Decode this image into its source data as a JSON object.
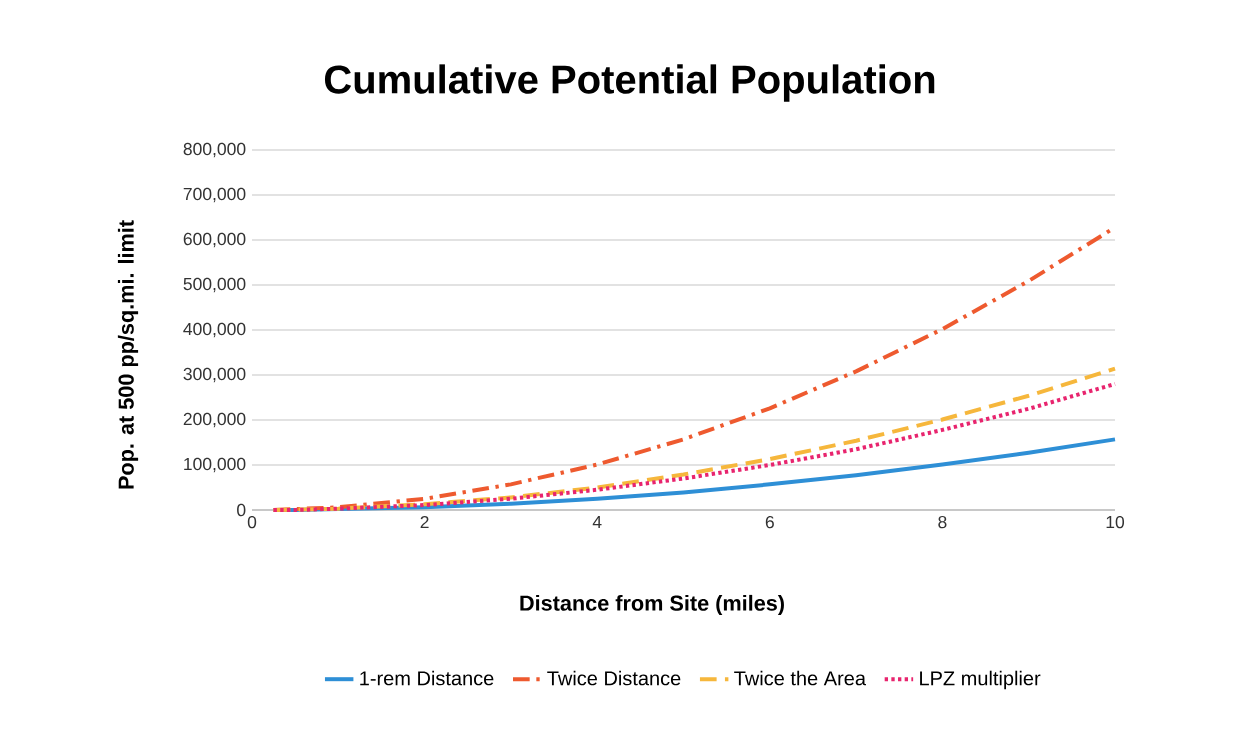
{
  "chart_data": {
    "type": "line",
    "title": "Cumulative Potential Population",
    "xlabel": "Distance from Site (miles)",
    "ylabel": "Pop. at 500 pp/sq.mi. limit",
    "x": [
      0.25,
      0.5,
      1,
      2,
      3,
      4,
      5,
      6,
      7,
      8,
      9,
      10
    ],
    "series": [
      {
        "name": "1-rem  Distance",
        "color": "#2e8fd6",
        "line_style": "solid",
        "values": [
          0,
          0,
          2000,
          6000,
          14000,
          25000,
          39000,
          57000,
          77000,
          101000,
          127000,
          157000
        ]
      },
      {
        "name": "Twice Distance",
        "color": "#ee5a2f",
        "line_style": "dashdot",
        "values": [
          0,
          2000,
          6000,
          25000,
          57000,
          101000,
          157000,
          226000,
          308000,
          402000,
          509000,
          628000
        ]
      },
      {
        "name": "Twice the Area",
        "color": "#f6b73c",
        "line_style": "dashed",
        "values": [
          0,
          1000,
          3000,
          13000,
          28000,
          50000,
          79000,
          113000,
          154000,
          201000,
          254000,
          314000
        ]
      },
      {
        "name": "LPZ multiplier",
        "color": "#e8246e",
        "line_style": "dotted",
        "values": [
          0,
          0,
          3000,
          11000,
          25000,
          45000,
          70000,
          100000,
          135000,
          178000,
          225000,
          280000
        ]
      }
    ],
    "xlim": [
      0,
      10
    ],
    "xticks": [
      0,
      2,
      4,
      6,
      8,
      10
    ],
    "ylim": [
      0,
      800000
    ],
    "yticks": [
      0,
      {
        "value": 100000,
        "label": "100,000"
      },
      {
        "value": 200000,
        "label": "200,000"
      },
      {
        "value": 300000,
        "label": "300,000"
      },
      {
        "value": 400000,
        "label": "400,000"
      },
      {
        "value": 500000,
        "label": "500,000"
      },
      {
        "value": 600000,
        "label": "600,000"
      },
      {
        "value": 700000,
        "label": "700,000"
      },
      {
        "value": 800000,
        "label": "800,000"
      }
    ],
    "grid": "y",
    "legend": "bottom"
  }
}
